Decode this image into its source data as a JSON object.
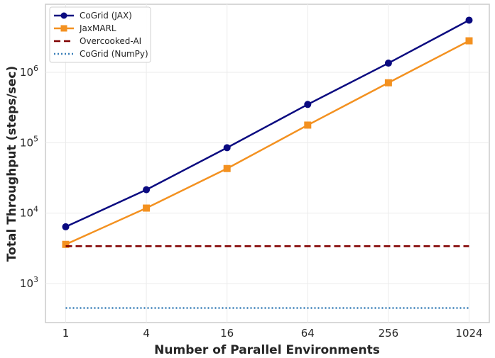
{
  "chart_data": {
    "type": "line",
    "xlabel": "Number of Parallel Environments",
    "ylabel": "Total Throughput (steps/sec)",
    "x_scale": "log2",
    "y_scale": "log10",
    "x": [
      1,
      4,
      16,
      64,
      256,
      1024
    ],
    "x_tick_labels": [
      "1",
      "4",
      "16",
      "64",
      "256",
      "1024"
    ],
    "y_ticks": [
      {
        "value": 1000,
        "base": "10",
        "exp": "3"
      },
      {
        "value": 10000,
        "base": "10",
        "exp": "4"
      },
      {
        "value": 100000,
        "base": "10",
        "exp": "5"
      },
      {
        "value": 1000000,
        "base": "10",
        "exp": "6"
      }
    ],
    "ylim": [
      280,
      9000000
    ],
    "grid": true,
    "legend_position": "top-left",
    "series": [
      {
        "name": "CoGrid (JAX)",
        "color": "#0a0a80",
        "style": "solid",
        "marker": "circle",
        "values": [
          6400,
          21500,
          85000,
          350000,
          1350000,
          5500000
        ]
      },
      {
        "name": "JaxMARL",
        "color": "#f39120",
        "style": "solid",
        "marker": "square",
        "values": [
          3600,
          11800,
          43000,
          178000,
          710000,
          2800000
        ]
      },
      {
        "name": "Overcooked-AI",
        "color": "#800000",
        "style": "dashed",
        "marker": "none",
        "values": [
          3400,
          3400,
          3400,
          3400,
          3400,
          3400
        ]
      },
      {
        "name": "CoGrid (NumPy)",
        "color": "#3a7fb8",
        "style": "dotted",
        "marker": "none",
        "values": [
          450,
          450,
          450,
          450,
          450,
          450
        ]
      }
    ]
  }
}
